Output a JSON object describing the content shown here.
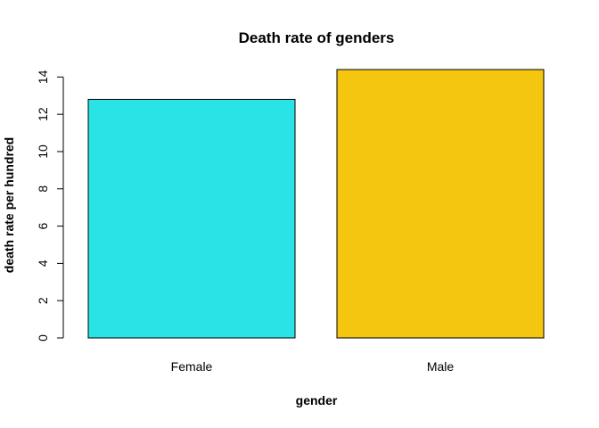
{
  "chart_data": {
    "type": "bar",
    "title": "Death rate of genders",
    "xlabel": "gender",
    "ylabel": "death rate per hundred",
    "categories": [
      "Female",
      "Male"
    ],
    "values": [
      12.8,
      14.4
    ],
    "colors": [
      "#29E3E6",
      "#F4C610"
    ],
    "ylim": [
      0,
      14.4
    ],
    "yticks": [
      "0",
      "2",
      "4",
      "6",
      "8",
      "10",
      "12",
      "14"
    ],
    "grid": false,
    "legend": "none"
  }
}
